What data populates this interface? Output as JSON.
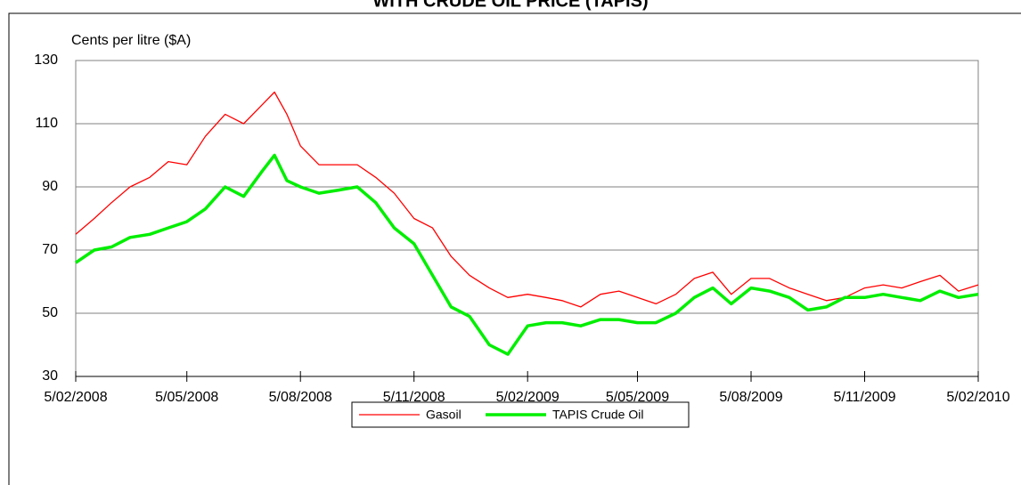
{
  "chart_data": {
    "type": "line",
    "title": "WITH CRUDE OIL PRICE (TAPIS)",
    "y_label": "Cents per litre ($A)",
    "x": [
      "2008-02-05",
      "2008-02-20",
      "2008-03-05",
      "2008-03-20",
      "2008-04-05",
      "2008-04-20",
      "2008-05-05",
      "2008-05-20",
      "2008-06-05",
      "2008-06-20",
      "2008-07-05",
      "2008-07-15",
      "2008-07-25",
      "2008-08-05",
      "2008-08-20",
      "2008-09-05",
      "2008-09-20",
      "2008-10-05",
      "2008-10-20",
      "2008-11-05",
      "2008-11-20",
      "2008-12-05",
      "2008-12-20",
      "2009-01-05",
      "2009-01-20",
      "2009-02-05",
      "2009-02-20",
      "2009-03-05",
      "2009-03-20",
      "2009-04-05",
      "2009-04-20",
      "2009-05-05",
      "2009-05-20",
      "2009-06-05",
      "2009-06-20",
      "2009-07-05",
      "2009-07-20",
      "2009-08-05",
      "2009-08-20",
      "2009-09-05",
      "2009-09-20",
      "2009-10-05",
      "2009-10-20",
      "2009-11-05",
      "2009-11-20",
      "2009-12-05",
      "2009-12-20",
      "2010-01-05",
      "2010-01-20",
      "2010-02-05"
    ],
    "series": [
      {
        "name": "Gasoil",
        "color": "#ff0000",
        "width": 1.3,
        "values": [
          75,
          80,
          85,
          90,
          93,
          98,
          97,
          106,
          113,
          110,
          116,
          120,
          113,
          103,
          97,
          97,
          97,
          93,
          88,
          80,
          77,
          68,
          62,
          58,
          55,
          56,
          55,
          54,
          52,
          56,
          57,
          55,
          53,
          56,
          61,
          63,
          56,
          61,
          61,
          58,
          56,
          54,
          55,
          58,
          59,
          58,
          60,
          62,
          57,
          59
        ]
      },
      {
        "name": "TAPIS Crude Oil",
        "color": "#00ee00",
        "width": 3.5,
        "values": [
          66,
          70,
          71,
          74,
          75,
          77,
          79,
          83,
          90,
          87,
          95,
          100,
          92,
          90,
          88,
          89,
          90,
          85,
          77,
          72,
          62,
          52,
          49,
          40,
          37,
          46,
          47,
          47,
          46,
          48,
          48,
          47,
          47,
          50,
          55,
          58,
          53,
          58,
          57,
          55,
          51,
          52,
          55,
          55,
          56,
          55,
          54,
          57,
          55,
          56
        ]
      }
    ],
    "xlim": [
      "2008-02-05",
      "2010-02-05"
    ],
    "xticks": [
      {
        "value": "2008-02-05",
        "label": "5/02/2008"
      },
      {
        "value": "2008-05-05",
        "label": "5/05/2008"
      },
      {
        "value": "2008-08-05",
        "label": "5/08/2008"
      },
      {
        "value": "2008-11-05",
        "label": "5/11/2008"
      },
      {
        "value": "2009-02-05",
        "label": "5/02/2009"
      },
      {
        "value": "2009-05-05",
        "label": "5/05/2009"
      },
      {
        "value": "2009-08-05",
        "label": "5/08/2009"
      },
      {
        "value": "2009-11-05",
        "label": "5/11/2009"
      },
      {
        "value": "2010-02-05",
        "label": "5/02/2010"
      }
    ],
    "ylim": [
      30,
      130
    ],
    "yticks": [
      30,
      50,
      70,
      90,
      110,
      130
    ],
    "grid": true
  }
}
